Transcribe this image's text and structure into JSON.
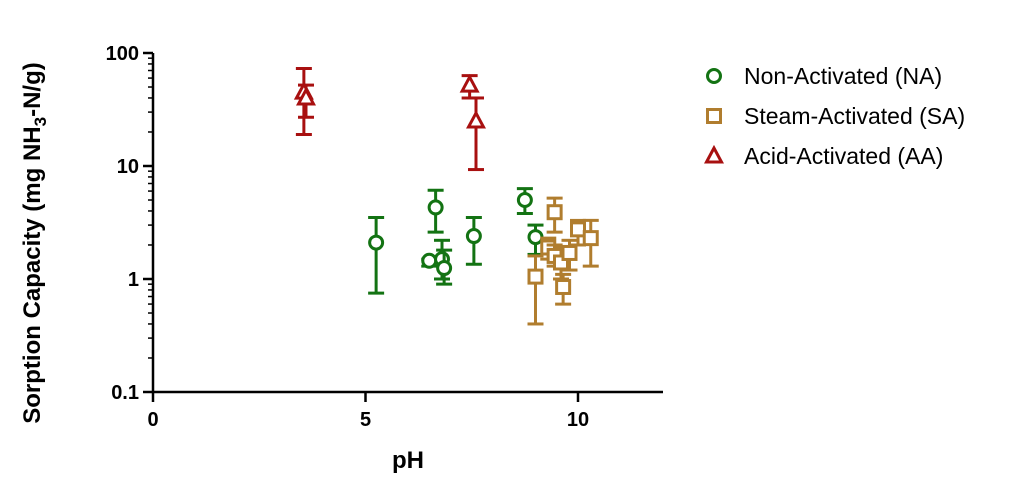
{
  "chart_data": {
    "type": "scatter",
    "title": "",
    "xlabel": "pH",
    "ylabel": "Sorption Capacity (mg NH3-N/g)",
    "ylabel_parts": {
      "before": "Sorption Capacity (mg NH",
      "sub": "3",
      "after": "-N/g)"
    },
    "xlim": [
      0,
      12
    ],
    "ylim": [
      0.1,
      100
    ],
    "yscale": "log",
    "x_ticks": [
      0,
      5,
      10
    ],
    "x_tick_labels": [
      "0",
      "5",
      "10"
    ],
    "y_ticks": [
      0.1,
      1,
      10,
      100
    ],
    "y_tick_labels": [
      "0.1",
      "1",
      "10",
      "100"
    ],
    "grid": false,
    "legend_position": "right",
    "series": [
      {
        "name": "Non-Activated (NA)",
        "marker": "circle",
        "color": "#137313",
        "points": [
          {
            "x": 5.25,
            "y": 2.1,
            "err_low": 0.75,
            "err_high": 3.5
          },
          {
            "x": 6.5,
            "y": 1.45,
            "err_low": 1.3,
            "err_high": 1.5
          },
          {
            "x": 6.65,
            "y": 4.3,
            "err_low": 2.6,
            "err_high": 6.1
          },
          {
            "x": 6.8,
            "y": 1.5,
            "err_low": 1.0,
            "err_high": 2.2
          },
          {
            "x": 6.85,
            "y": 1.25,
            "err_low": 0.9,
            "err_high": 1.8
          },
          {
            "x": 7.55,
            "y": 2.4,
            "err_low": 1.35,
            "err_high": 3.5
          },
          {
            "x": 8.75,
            "y": 5.0,
            "err_low": 3.8,
            "err_high": 6.3
          },
          {
            "x": 9.0,
            "y": 2.35,
            "err_low": 1.65,
            "err_high": 3.0
          }
        ]
      },
      {
        "name": "Steam-Activated (SA)",
        "marker": "square",
        "color": "#b07d2e",
        "points": [
          {
            "x": 9.0,
            "y": 1.05,
            "err_low": 0.4,
            "err_high": 1.6
          },
          {
            "x": 9.3,
            "y": 1.9,
            "err_low": 1.5,
            "err_high": 2.3
          },
          {
            "x": 9.45,
            "y": 3.9,
            "err_low": 2.6,
            "err_high": 5.2
          },
          {
            "x": 9.45,
            "y": 1.6,
            "err_low": 1.3,
            "err_high": 2.0
          },
          {
            "x": 9.6,
            "y": 1.4,
            "err_low": 1.0,
            "err_high": 1.9
          },
          {
            "x": 9.65,
            "y": 0.85,
            "err_low": 0.6,
            "err_high": 1.1
          },
          {
            "x": 9.8,
            "y": 1.7,
            "err_low": 1.2,
            "err_high": 2.2
          },
          {
            "x": 10.0,
            "y": 2.75,
            "err_low": 2.0,
            "err_high": 3.3
          },
          {
            "x": 10.3,
            "y": 2.3,
            "err_low": 1.3,
            "err_high": 3.3
          }
        ]
      },
      {
        "name": "Acid-Activated (AA)",
        "marker": "triangle",
        "color": "#a81010",
        "points": [
          {
            "x": 3.55,
            "y": 45,
            "err_low": 19,
            "err_high": 73
          },
          {
            "x": 3.6,
            "y": 40,
            "err_low": 27,
            "err_high": 52
          },
          {
            "x": 7.45,
            "y": 52,
            "err_low": 40,
            "err_high": 63
          },
          {
            "x": 7.6,
            "y": 25,
            "err_low": 9.3,
            "err_high": 40
          }
        ]
      }
    ]
  }
}
